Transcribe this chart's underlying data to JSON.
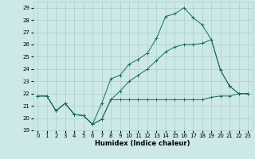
{
  "xlabel": "Humidex (Indice chaleur)",
  "bg_color": "#cde8e8",
  "grid_color": "#aacfcf",
  "line_color": "#1a6b5a",
  "xlim": [
    -0.5,
    23.5
  ],
  "ylim": [
    19,
    29.5
  ],
  "yticks": [
    19,
    20,
    21,
    22,
    23,
    24,
    25,
    26,
    27,
    28,
    29
  ],
  "xticks": [
    0,
    1,
    2,
    3,
    4,
    5,
    6,
    7,
    8,
    9,
    10,
    11,
    12,
    13,
    14,
    15,
    16,
    17,
    18,
    19,
    20,
    21,
    22,
    23
  ],
  "line1_x": [
    0,
    1,
    2,
    3,
    4,
    5,
    6,
    7,
    8,
    9,
    10,
    11,
    12,
    13,
    14,
    15,
    16,
    17,
    18,
    19,
    20,
    21,
    22,
    23
  ],
  "line1_y": [
    21.8,
    21.8,
    20.6,
    21.2,
    20.3,
    20.2,
    19.5,
    19.9,
    21.5,
    21.5,
    21.5,
    21.5,
    21.5,
    21.5,
    21.5,
    21.5,
    21.5,
    21.5,
    21.5,
    21.7,
    21.8,
    21.8,
    22.0,
    22.0
  ],
  "line2_x": [
    0,
    1,
    2,
    3,
    4,
    5,
    6,
    7,
    8,
    9,
    10,
    11,
    12,
    13,
    14,
    15,
    16,
    17,
    18,
    19,
    20,
    21,
    22,
    23
  ],
  "line2_y": [
    21.8,
    21.8,
    20.6,
    21.2,
    20.3,
    20.2,
    19.5,
    21.2,
    23.2,
    23.5,
    24.4,
    24.8,
    25.3,
    26.5,
    28.3,
    28.5,
    29.0,
    28.2,
    27.6,
    26.4,
    23.9,
    22.6,
    22.0,
    22.0
  ],
  "line3_x": [
    0,
    1,
    2,
    3,
    4,
    5,
    6,
    7,
    8,
    9,
    10,
    11,
    12,
    13,
    14,
    15,
    16,
    17,
    18,
    19,
    20,
    21,
    22,
    23
  ],
  "line3_y": [
    21.8,
    21.8,
    20.6,
    21.2,
    20.3,
    20.2,
    19.5,
    19.9,
    21.5,
    22.2,
    23.0,
    23.5,
    24.0,
    24.7,
    25.4,
    25.8,
    26.0,
    26.0,
    26.1,
    26.4,
    23.9,
    22.6,
    22.0,
    22.0
  ]
}
